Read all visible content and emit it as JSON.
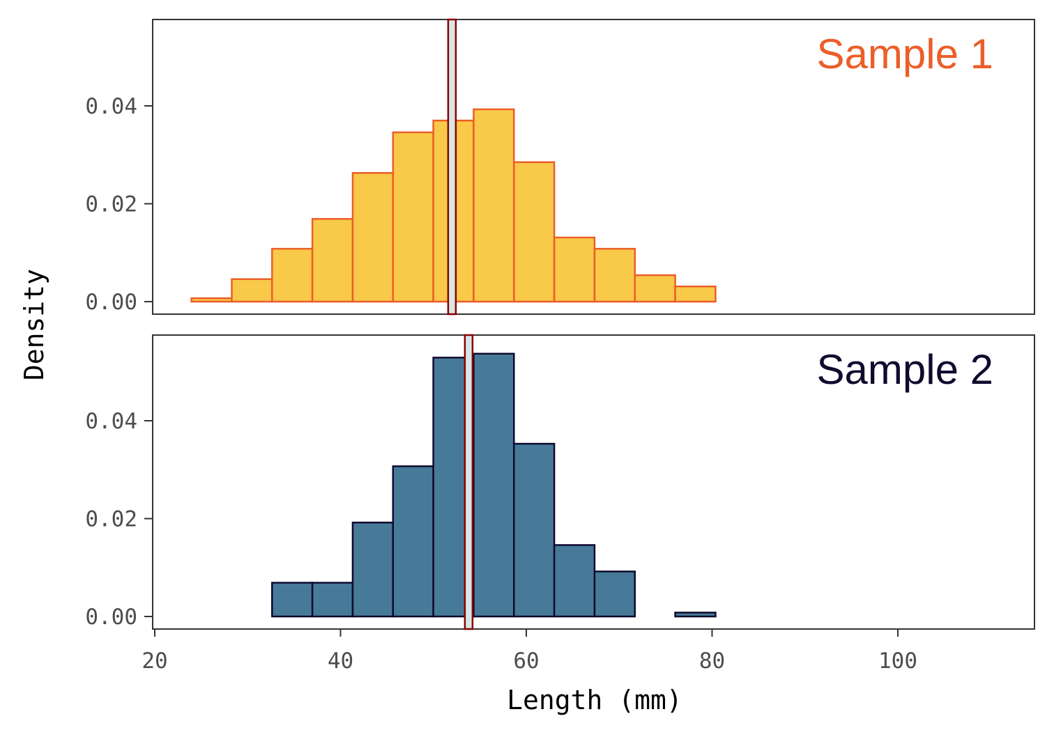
{
  "chart_data": {
    "type": "bar",
    "subtype": "faceted-histogram",
    "xlabel": "Length (mm)",
    "ylabel": "Density",
    "xlim": [
      20,
      113
    ],
    "x_ticks": [
      20,
      40,
      60,
      80,
      100
    ],
    "x_tick_labels": [
      "20",
      "40",
      "60",
      "80",
      "100"
    ],
    "ylim": [
      0,
      0.058
    ],
    "y_ticks": [
      0,
      0.02,
      0.04
    ],
    "y_tick_labels": [
      "0.00",
      "0.02",
      "0.04"
    ],
    "grid": false,
    "bin_edges": [
      23.95,
      28.29,
      32.63,
      36.97,
      41.31,
      45.65,
      49.99,
      54.33,
      58.67,
      63.01,
      67.35,
      71.69,
      76.03,
      80.37,
      84.71,
      89.05,
      93.39,
      97.73,
      102.07,
      106.41,
      110.75
    ],
    "series": [
      {
        "name": "Sample 1",
        "fill": "#F9C94A",
        "stroke": "#EB5E28",
        "label_color": "#EB5E28",
        "values": [
          0.0007,
          0.0046,
          0.0108,
          0.0169,
          0.0263,
          0.0346,
          0.037,
          0.0393,
          0.0285,
          0.0131,
          0.0108,
          0.0054,
          0.0031,
          0,
          0,
          0,
          0,
          0,
          0,
          0
        ],
        "mean_line": 52.0
      },
      {
        "name": "Sample 2",
        "fill": "#477A98",
        "stroke": "#0F0A2E",
        "label_color": "#0F0A2E",
        "values": [
          0,
          0,
          0.0069,
          0.0069,
          0.0192,
          0.0307,
          0.0529,
          0.0537,
          0.0353,
          0.0146,
          0.0092,
          0,
          0.0008,
          0,
          0,
          0,
          0,
          0,
          0,
          0
        ],
        "mean_line": 53.8
      }
    ],
    "mean_line_style": {
      "fill": "#D6E8E6",
      "stroke": "#8B0000"
    }
  }
}
